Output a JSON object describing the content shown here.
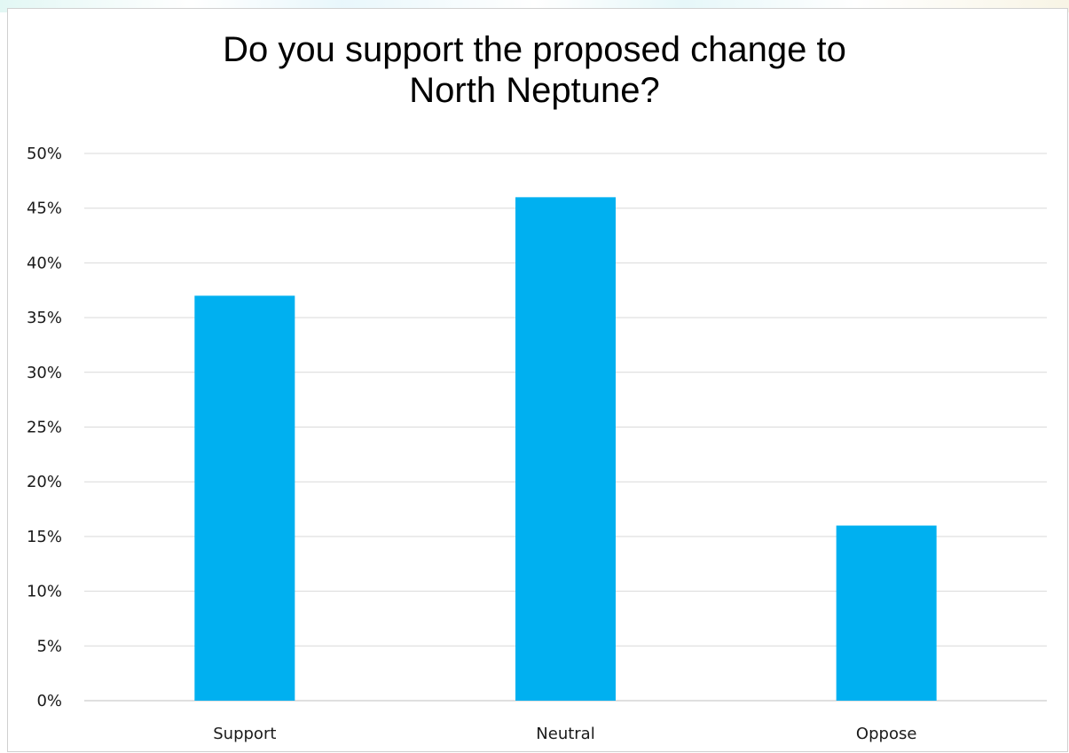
{
  "colors": {
    "bar": "#00b0f0",
    "grid": "#d9d9d9",
    "axis": "#bfbfbf"
  },
  "chart_data": {
    "type": "bar",
    "title_lines": [
      "Do you support the proposed change to",
      "North Neptune?"
    ],
    "categories": [
      "Support",
      "Neutral",
      "Oppose"
    ],
    "values": [
      37,
      46,
      16
    ],
    "ylim": [
      0,
      50
    ],
    "yticks": [
      0,
      5,
      10,
      15,
      20,
      25,
      30,
      35,
      40,
      45,
      50
    ],
    "ytick_labels": [
      "0%",
      "5%",
      "10%",
      "15%",
      "20%",
      "25%",
      "30%",
      "35%",
      "40%",
      "45%",
      "50%"
    ],
    "unit": "%",
    "xlabel": "",
    "ylabel": "",
    "grid": true,
    "legend": "none"
  }
}
